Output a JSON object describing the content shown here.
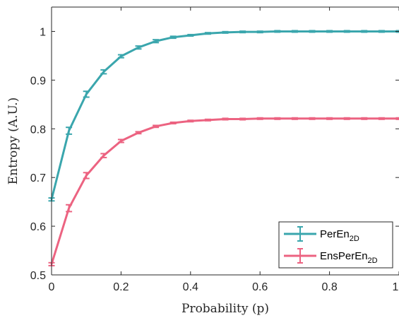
{
  "chart_data": {
    "type": "line",
    "xlabel": "Probability (p)",
    "ylabel": "Entropy (A.U.)",
    "xlim": [
      0,
      1
    ],
    "ylim": [
      0.5,
      1.05
    ],
    "xticks": [
      0,
      0.2,
      0.4,
      0.6,
      0.8,
      1
    ],
    "xtick_labels": [
      "0",
      "0.2",
      "0.4",
      "0.6",
      "0.8",
      "1"
    ],
    "yticks": [
      0.5,
      0.6,
      0.7,
      0.8,
      0.9,
      1
    ],
    "ytick_labels": [
      "0.5",
      "0.6",
      "0.7",
      "0.8",
      "0.9",
      "1"
    ],
    "grid": false,
    "legend_position": "bottom-right",
    "series": [
      {
        "name": "PerEn",
        "name_subscript": "2D",
        "color": "#3aa6ad",
        "x": [
          0,
          0.05,
          0.1,
          0.15,
          0.2,
          0.25,
          0.3,
          0.35,
          0.4,
          0.45,
          0.5,
          0.55,
          0.6,
          0.65,
          0.7,
          0.75,
          0.8,
          0.85,
          0.9,
          0.95,
          1
        ],
        "y": [
          0.655,
          0.796,
          0.871,
          0.917,
          0.949,
          0.967,
          0.98,
          0.988,
          0.992,
          0.996,
          0.998,
          0.999,
          0.999,
          1.0,
          1.0,
          1.0,
          1.0,
          1.0,
          1.0,
          1.0,
          1.0
        ],
        "err": [
          0.003,
          0.007,
          0.006,
          0.004,
          0.003,
          0.003,
          0.003,
          0.002,
          0.001,
          0.001,
          0.001,
          0.001,
          0.001,
          0.001,
          0.001,
          0.001,
          0.001,
          0.001,
          0.001,
          0.001,
          0.001
        ]
      },
      {
        "name": "EnsPerEn",
        "name_subscript": "2D",
        "color": "#ec6381",
        "x": [
          0,
          0.05,
          0.1,
          0.15,
          0.2,
          0.25,
          0.3,
          0.35,
          0.4,
          0.45,
          0.5,
          0.55,
          0.6,
          0.65,
          0.7,
          0.75,
          0.8,
          0.85,
          0.9,
          0.95,
          1
        ],
        "y": [
          0.522,
          0.637,
          0.704,
          0.745,
          0.775,
          0.792,
          0.805,
          0.812,
          0.816,
          0.818,
          0.82,
          0.82,
          0.821,
          0.821,
          0.821,
          0.821,
          0.821,
          0.821,
          0.821,
          0.821,
          0.821
        ],
        "err": [
          0.003,
          0.007,
          0.006,
          0.004,
          0.003,
          0.002,
          0.002,
          0.001,
          0.001,
          0.001,
          0.001,
          0.001,
          0.001,
          0.001,
          0.001,
          0.001,
          0.001,
          0.001,
          0.001,
          0.001,
          0.001
        ]
      }
    ]
  }
}
